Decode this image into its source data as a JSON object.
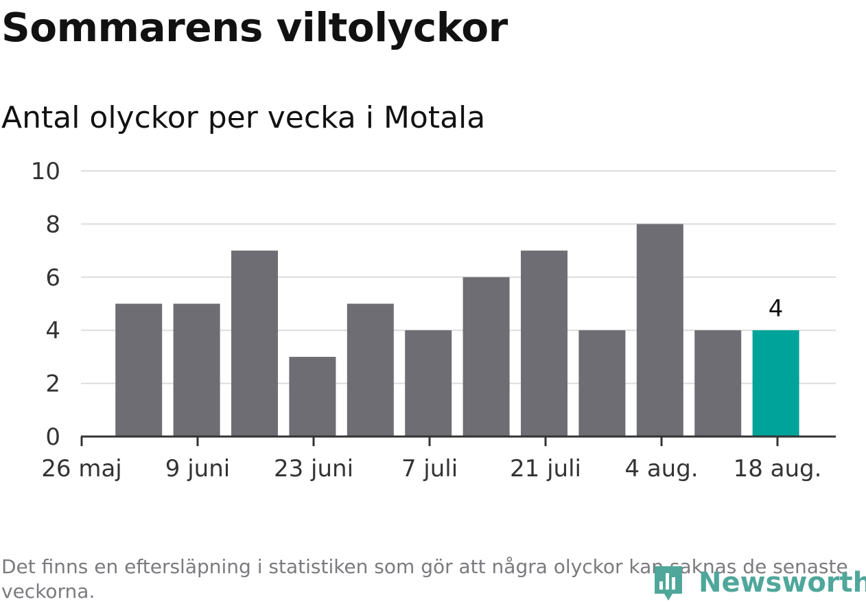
{
  "title": "Sommarens viltolyckor",
  "subtitle": "Antal olyckor per vecka i Motala",
  "note": "Det finns en eftersläpning i statistiken som gör att några olyckor kan saknas de senaste veckorna.",
  "brand": {
    "name": "Newsworthy",
    "color": "#4fa79b"
  },
  "chart_data": {
    "type": "bar",
    "x": [
      "2 juni",
      "9 juni",
      "16 juni",
      "23 juni",
      "30 juni",
      "7 juli",
      "14 juli",
      "21 juli",
      "28 juli",
      "4 aug.",
      "11 aug.",
      "18 aug."
    ],
    "values": [
      5,
      5,
      7,
      3,
      5,
      4,
      6,
      7,
      4,
      8,
      4,
      4
    ],
    "x_tick_labels": [
      "26 maj",
      "9 juni",
      "23 juni",
      "7 juli",
      "21 juli",
      "4 aug.",
      "18 aug."
    ],
    "ylim": [
      0,
      10
    ],
    "y_ticks": [
      0,
      2,
      4,
      6,
      8,
      10
    ],
    "highlight_index": 11,
    "data_labels": [
      {
        "index": 11,
        "text": "4"
      }
    ],
    "colors": {
      "bar": "#6e6d73",
      "highlight": "#00a39a",
      "grid": "#dcdcdc",
      "axis": "#333333"
    },
    "grid": true,
    "legend": "none"
  }
}
